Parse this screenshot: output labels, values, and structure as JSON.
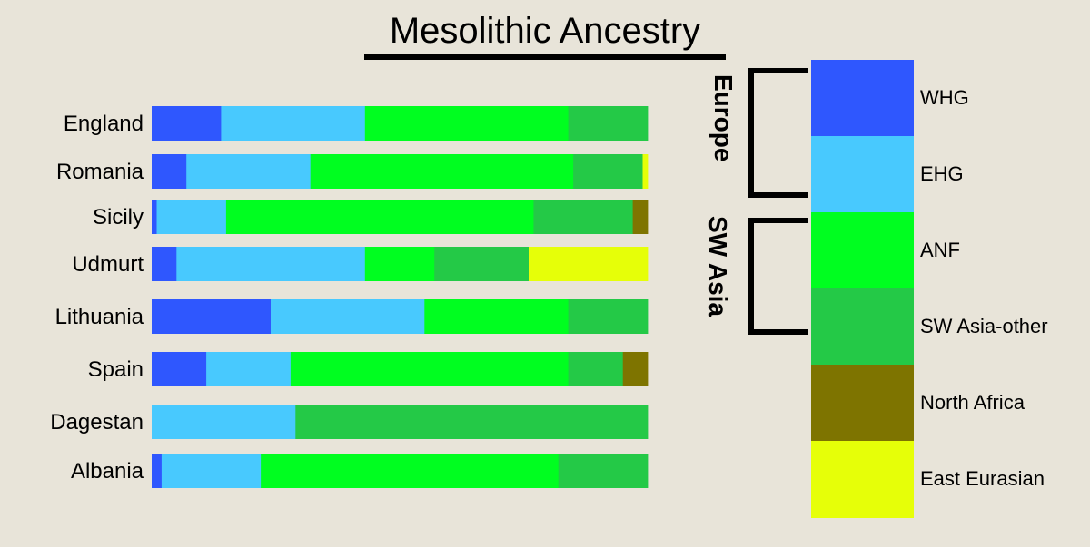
{
  "chart_data": {
    "type": "bar",
    "orientation": "horizontal",
    "stacked": true,
    "normalized": true,
    "title": "Mesolithic Ancestry",
    "xlabel": "",
    "ylabel": "",
    "xlim": [
      0,
      1
    ],
    "categories": [
      "England",
      "Romania",
      "Sicily",
      "Udmurt",
      "Lithuania",
      "Spain",
      "Dagestan",
      "Albania"
    ],
    "series": [
      {
        "name": "WHG",
        "color": "#2f57fe",
        "values": [
          0.14,
          0.07,
          0.01,
          0.05,
          0.24,
          0.11,
          0.0,
          0.02
        ]
      },
      {
        "name": "EHG",
        "color": "#48c9fe",
        "values": [
          0.29,
          0.25,
          0.14,
          0.38,
          0.31,
          0.17,
          0.29,
          0.2
        ]
      },
      {
        "name": "ANF",
        "color": "#00fe20",
        "values": [
          0.41,
          0.53,
          0.62,
          0.14,
          0.29,
          0.56,
          0.0,
          0.6
        ]
      },
      {
        "name": "SW Asia-other",
        "color": "#24c947",
        "values": [
          0.16,
          0.14,
          0.2,
          0.19,
          0.16,
          0.11,
          0.71,
          0.18
        ]
      },
      {
        "name": "North Africa",
        "color": "#7e7400",
        "values": [
          0.0,
          0.0,
          0.03,
          0.0,
          0.0,
          0.05,
          0.0,
          0.0
        ]
      },
      {
        "name": "East Eurasian",
        "color": "#e6ff08",
        "values": [
          0.0,
          0.01,
          0.0,
          0.24,
          0.0,
          0.0,
          0.0,
          0.0
        ]
      }
    ],
    "legend": "right",
    "groups": [
      {
        "label": "Europe",
        "members": [
          "WHG",
          "EHG"
        ]
      },
      {
        "label": "SW Asia",
        "members": [
          "ANF",
          "SW Asia-other"
        ]
      }
    ]
  }
}
